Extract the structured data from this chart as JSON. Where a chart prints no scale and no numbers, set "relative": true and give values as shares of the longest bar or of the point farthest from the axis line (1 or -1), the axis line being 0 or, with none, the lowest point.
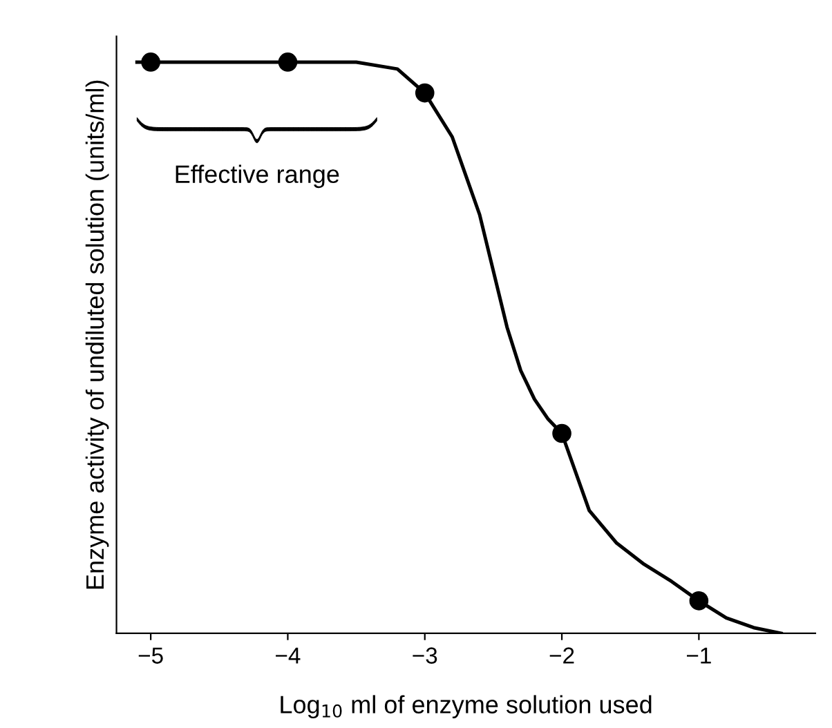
{
  "chart_data": {
    "type": "line",
    "relative": true,
    "xlabel": "Log$_{10}$ ml of enzyme solution used",
    "ylabel": "Enzyme activity of undiluted solution (units/ml)",
    "xlim": [
      -5.25,
      -0.15
    ],
    "xticks": [
      {
        "value": -5,
        "label": "−5"
      },
      {
        "value": -4,
        "label": "−4"
      },
      {
        "value": -3,
        "label": "−3"
      },
      {
        "value": -2,
        "label": "−2"
      },
      {
        "value": -1,
        "label": "−1"
      }
    ],
    "series": [
      {
        "color": "#000000",
        "marker": "none",
        "x": [
          -5.1,
          -4.5,
          -4,
          -3.5,
          -3.2,
          -3,
          -2.8,
          -2.6,
          -2.4,
          -2.3,
          -2.2,
          -2.1,
          -2,
          -1.8,
          -1.6,
          -1.4,
          -1.2,
          -1,
          -0.8,
          -0.6,
          -0.4
        ],
        "values": [
          1.0,
          1.0,
          1.0,
          1.0,
          0.988,
          0.946,
          0.869,
          0.733,
          0.536,
          0.46,
          0.41,
          0.375,
          0.35,
          0.215,
          0.158,
          0.121,
          0.091,
          0.057,
          0.027,
          0.01,
          0.0
        ]
      },
      {
        "type": "scatter",
        "color": "#000000",
        "marker": "circle",
        "x": [
          -5,
          -4,
          -3,
          -2,
          -1
        ],
        "values": [
          1.0,
          1.0,
          0.946,
          0.35,
          0.057
        ]
      }
    ],
    "annotations": [
      "Effective range"
    ],
    "grid": false,
    "legend": false
  }
}
